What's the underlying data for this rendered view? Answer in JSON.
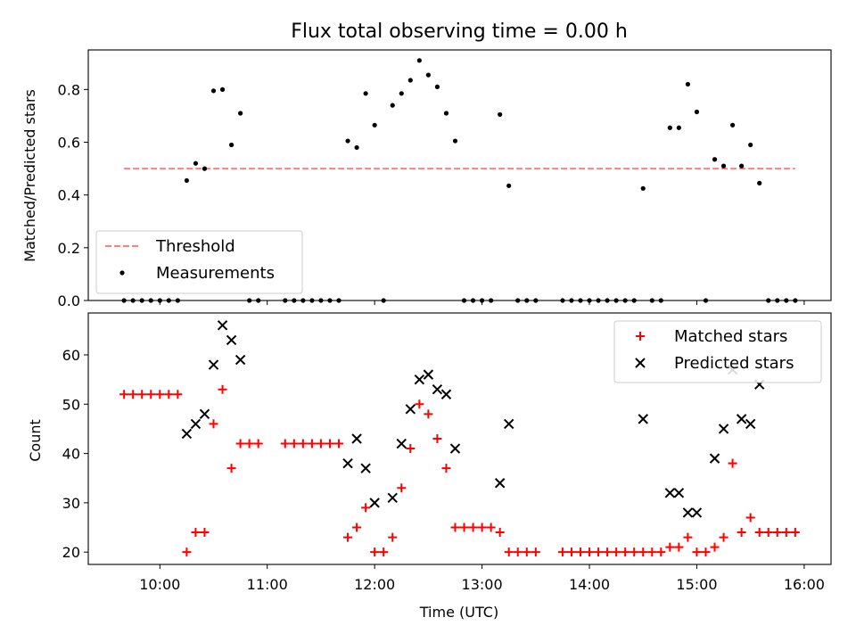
{
  "chart_data": [
    {
      "type": "scatter",
      "title": "Flux total observing time = 0.00 h",
      "xlabel": "",
      "ylabel": "Matched/Predicted stars",
      "xlim": [
        "09:20",
        "16:15"
      ],
      "ylim": [
        0,
        0.95
      ],
      "yticks": [
        0.0,
        0.2,
        0.4,
        0.6,
        0.8
      ],
      "yticklabels": [
        "0.0",
        "0.2",
        "0.4",
        "0.6",
        "0.8"
      ],
      "legend_position": "lower-left",
      "series": [
        {
          "name": "Threshold",
          "style": "dashed-line",
          "color": "#ff7f7f",
          "x": [
            "09:40",
            "15:55"
          ],
          "y": [
            0.5,
            0.5
          ]
        },
        {
          "name": "Measurements",
          "style": "dot",
          "color": "#000000",
          "points": [
            [
              "09:40",
              0
            ],
            [
              "09:45",
              0
            ],
            [
              "09:50",
              0
            ],
            [
              "09:55",
              0
            ],
            [
              "10:00",
              0
            ],
            [
              "10:05",
              0
            ],
            [
              "10:10",
              0
            ],
            [
              "10:15",
              0.455
            ],
            [
              "10:20",
              0.52
            ],
            [
              "10:25",
              0.5
            ],
            [
              "10:30",
              0.795
            ],
            [
              "10:35",
              0.8
            ],
            [
              "10:40",
              0.59
            ],
            [
              "10:45",
              0.71
            ],
            [
              "10:50",
              0
            ],
            [
              "10:55",
              0
            ],
            [
              "11:10",
              0
            ],
            [
              "11:15",
              0
            ],
            [
              "11:20",
              0
            ],
            [
              "11:25",
              0
            ],
            [
              "11:30",
              0
            ],
            [
              "11:35",
              0
            ],
            [
              "11:40",
              0
            ],
            [
              "11:45",
              0.605
            ],
            [
              "11:50",
              0.58
            ],
            [
              "11:55",
              0.785
            ],
            [
              "12:00",
              0.665
            ],
            [
              "12:05",
              0
            ],
            [
              "12:10",
              0.74
            ],
            [
              "12:15",
              0.785
            ],
            [
              "12:20",
              0.835
            ],
            [
              "12:25",
              0.91
            ],
            [
              "12:30",
              0.855
            ],
            [
              "12:35",
              0.81
            ],
            [
              "12:40",
              0.71
            ],
            [
              "12:45",
              0.605
            ],
            [
              "12:50",
              0
            ],
            [
              "12:55",
              0
            ],
            [
              "13:00",
              0
            ],
            [
              "13:05",
              0
            ],
            [
              "13:10",
              0.705
            ],
            [
              "13:15",
              0.435
            ],
            [
              "13:20",
              0
            ],
            [
              "13:25",
              0
            ],
            [
              "13:30",
              0
            ],
            [
              "13:45",
              0
            ],
            [
              "13:50",
              0
            ],
            [
              "13:55",
              0
            ],
            [
              "14:00",
              0
            ],
            [
              "14:05",
              0
            ],
            [
              "14:10",
              0
            ],
            [
              "14:15",
              0
            ],
            [
              "14:20",
              0
            ],
            [
              "14:25",
              0
            ],
            [
              "14:30",
              0.425
            ],
            [
              "14:35",
              0
            ],
            [
              "14:40",
              0
            ],
            [
              "14:45",
              0.655
            ],
            [
              "14:50",
              0.655
            ],
            [
              "14:55",
              0.82
            ],
            [
              "15:00",
              0.715
            ],
            [
              "15:05",
              0
            ],
            [
              "15:10",
              0.535
            ],
            [
              "15:15",
              0.51
            ],
            [
              "15:20",
              0.665
            ],
            [
              "15:25",
              0.51
            ],
            [
              "15:30",
              0.59
            ],
            [
              "15:35",
              0.445
            ],
            [
              "15:40",
              0
            ],
            [
              "15:45",
              0
            ],
            [
              "15:50",
              0
            ],
            [
              "15:55",
              0
            ]
          ]
        }
      ]
    },
    {
      "type": "scatter",
      "title": "",
      "xlabel": "Time (UTC)",
      "ylabel": "Count",
      "xlim": [
        "09:20",
        "16:15"
      ],
      "ylim": [
        17.5,
        68.5
      ],
      "xticks": [
        "10:00",
        "11:00",
        "12:00",
        "13:00",
        "14:00",
        "15:00",
        "16:00"
      ],
      "yticks": [
        20,
        30,
        40,
        50,
        60
      ],
      "legend_position": "upper-right",
      "series": [
        {
          "name": "Matched stars",
          "style": "plus",
          "color": "#ff0000",
          "points": [
            [
              "09:40",
              52
            ],
            [
              "09:45",
              52
            ],
            [
              "09:50",
              52
            ],
            [
              "09:55",
              52
            ],
            [
              "10:00",
              52
            ],
            [
              "10:05",
              52
            ],
            [
              "10:10",
              52
            ],
            [
              "10:15",
              20
            ],
            [
              "10:20",
              24
            ],
            [
              "10:25",
              24
            ],
            [
              "10:30",
              46
            ],
            [
              "10:35",
              53
            ],
            [
              "10:40",
              37
            ],
            [
              "10:45",
              42
            ],
            [
              "10:50",
              42
            ],
            [
              "10:55",
              42
            ],
            [
              "11:10",
              42
            ],
            [
              "11:15",
              42
            ],
            [
              "11:20",
              42
            ],
            [
              "11:25",
              42
            ],
            [
              "11:30",
              42
            ],
            [
              "11:35",
              42
            ],
            [
              "11:40",
              42
            ],
            [
              "11:45",
              23
            ],
            [
              "11:50",
              25
            ],
            [
              "11:55",
              29
            ],
            [
              "12:00",
              20
            ],
            [
              "12:05",
              20
            ],
            [
              "12:10",
              23
            ],
            [
              "12:15",
              33
            ],
            [
              "12:20",
              41
            ],
            [
              "12:25",
              50
            ],
            [
              "12:30",
              48
            ],
            [
              "12:35",
              43
            ],
            [
              "12:40",
              37
            ],
            [
              "12:45",
              25
            ],
            [
              "12:50",
              25
            ],
            [
              "12:55",
              25
            ],
            [
              "13:00",
              25
            ],
            [
              "13:05",
              25
            ],
            [
              "13:10",
              24
            ],
            [
              "13:15",
              20
            ],
            [
              "13:20",
              20
            ],
            [
              "13:25",
              20
            ],
            [
              "13:30",
              20
            ],
            [
              "13:45",
              20
            ],
            [
              "13:50",
              20
            ],
            [
              "13:55",
              20
            ],
            [
              "14:00",
              20
            ],
            [
              "14:05",
              20
            ],
            [
              "14:10",
              20
            ],
            [
              "14:15",
              20
            ],
            [
              "14:20",
              20
            ],
            [
              "14:25",
              20
            ],
            [
              "14:30",
              20
            ],
            [
              "14:35",
              20
            ],
            [
              "14:40",
              20
            ],
            [
              "14:45",
              21
            ],
            [
              "14:50",
              21
            ],
            [
              "14:55",
              23
            ],
            [
              "15:00",
              20
            ],
            [
              "15:05",
              20
            ],
            [
              "15:10",
              21
            ],
            [
              "15:15",
              23
            ],
            [
              "15:20",
              38
            ],
            [
              "15:25",
              24
            ],
            [
              "15:30",
              27
            ],
            [
              "15:35",
              24
            ],
            [
              "15:40",
              24
            ],
            [
              "15:45",
              24
            ],
            [
              "15:50",
              24
            ],
            [
              "15:55",
              24
            ]
          ]
        },
        {
          "name": "Predicted stars",
          "style": "x",
          "color": "#000000",
          "points": [
            [
              "10:15",
              44
            ],
            [
              "10:20",
              46
            ],
            [
              "10:25",
              48
            ],
            [
              "10:30",
              58
            ],
            [
              "10:35",
              66
            ],
            [
              "10:40",
              63
            ],
            [
              "10:45",
              59
            ],
            [
              "11:45",
              38
            ],
            [
              "11:50",
              43
            ],
            [
              "11:55",
              37
            ],
            [
              "12:00",
              30
            ],
            [
              "12:10",
              31
            ],
            [
              "12:15",
              42
            ],
            [
              "12:20",
              49
            ],
            [
              "12:25",
              55
            ],
            [
              "12:30",
              56
            ],
            [
              "12:35",
              53
            ],
            [
              "12:40",
              52
            ],
            [
              "12:45",
              41
            ],
            [
              "13:10",
              34
            ],
            [
              "13:15",
              46
            ],
            [
              "14:30",
              47
            ],
            [
              "14:45",
              32
            ],
            [
              "14:50",
              32
            ],
            [
              "14:55",
              28
            ],
            [
              "15:00",
              28
            ],
            [
              "15:10",
              39
            ],
            [
              "15:15",
              45
            ],
            [
              "15:20",
              57
            ],
            [
              "15:25",
              47
            ],
            [
              "15:30",
              46
            ],
            [
              "15:35",
              54
            ]
          ]
        }
      ]
    }
  ]
}
